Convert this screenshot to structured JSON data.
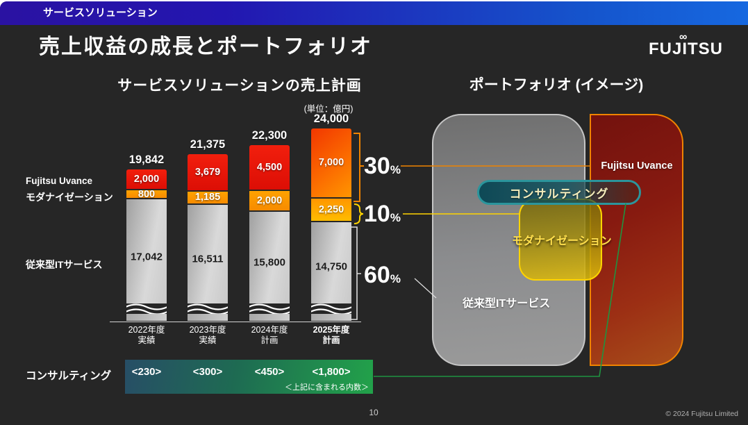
{
  "slide": {
    "tag": "サービスソリューション",
    "title": "売上収益の成長とポートフォリオ",
    "logo_text": "FUJITSU",
    "logo_infinity": "∞",
    "page_number": "10",
    "copyright": "© 2024 Fujitsu Limited"
  },
  "chart": {
    "title": "サービスソリューションの売上計画",
    "unit_label": "(単位：億円)",
    "totals_display": [
      "19,842",
      "21,375",
      "22,300",
      "24,000"
    ],
    "row_labels": {
      "uvance": "Fujitsu Uvance",
      "modernization": "モダナイゼーション",
      "legacy": "従来型ITサービス"
    },
    "percent_labels": [
      {
        "value": "30",
        "suffix": "%"
      },
      {
        "value": "10",
        "suffix": "%"
      },
      {
        "value": "60",
        "suffix": "%"
      }
    ],
    "categories_lines": [
      [
        "2022年度",
        "実績"
      ],
      [
        "2023年度",
        "実績"
      ],
      [
        "2024年度",
        "計画"
      ],
      [
        "2025年度",
        "計画"
      ]
    ],
    "segment_display": {
      "uvance": [
        "2,000",
        "3,679",
        "4,500",
        "7,000"
      ],
      "modernization": [
        "800",
        "1,185",
        "2,000",
        "2,250"
      ],
      "legacy": [
        "17,042",
        "16,511",
        "15,800",
        "14,750"
      ]
    }
  },
  "chart_data": {
    "type": "bar",
    "stacked": true,
    "title": "サービスソリューションの売上計画",
    "unit": "億円",
    "categories": [
      "2022年度 実績",
      "2023年度 実績",
      "2024年度 計画",
      "2025年度 計画"
    ],
    "totals": [
      19842,
      21375,
      22300,
      24000
    ],
    "series": [
      {
        "name": "Fujitsu Uvance",
        "values": [
          2000,
          3679,
          4500,
          7000
        ],
        "color": "#e8150a"
      },
      {
        "name": "モダナイゼーション",
        "values": [
          800,
          1185,
          2000,
          2250
        ],
        "color": "#ff9300"
      },
      {
        "name": "従来型ITサービス",
        "values": [
          17042,
          16511,
          15800,
          14750
        ],
        "color": "#c9c9c9"
      }
    ],
    "share_fy2025": {
      "Fujitsu Uvance": "30%",
      "モダナイゼーション": "10%",
      "従来型ITサービス": "60%"
    },
    "axis_break": true,
    "annotation_row": {
      "label": "コンサルティング",
      "values": [
        230,
        300,
        450,
        1800
      ],
      "values_display": [
        "<230>",
        "<300>",
        "<450>",
        "<1,800>"
      ],
      "note": "＜上記に含まれる内数＞"
    }
  },
  "portfolio": {
    "title": "ポートフォリオ (イメージ)",
    "labels": {
      "uvance": "Fujitsu Uvance",
      "consulting": "コンサルティング",
      "modernization": "モダナイゼーション",
      "legacy": "従来型ITサービス"
    }
  },
  "consulting": {
    "label": "コンサルティング",
    "values": [
      "<230>",
      "<300>",
      "<450>",
      "<1,800>"
    ],
    "note": "＜上記に含まれる内数＞"
  },
  "colors": {
    "accent_blue": "#1565d8",
    "uvance_red": "#e8150a",
    "modernization_orange": "#ff9300",
    "bracket_yellow": "#ffd400",
    "bracket_orange": "#f08300",
    "consulting_green": "#22a24a",
    "pill_teal": "#2b959c"
  }
}
